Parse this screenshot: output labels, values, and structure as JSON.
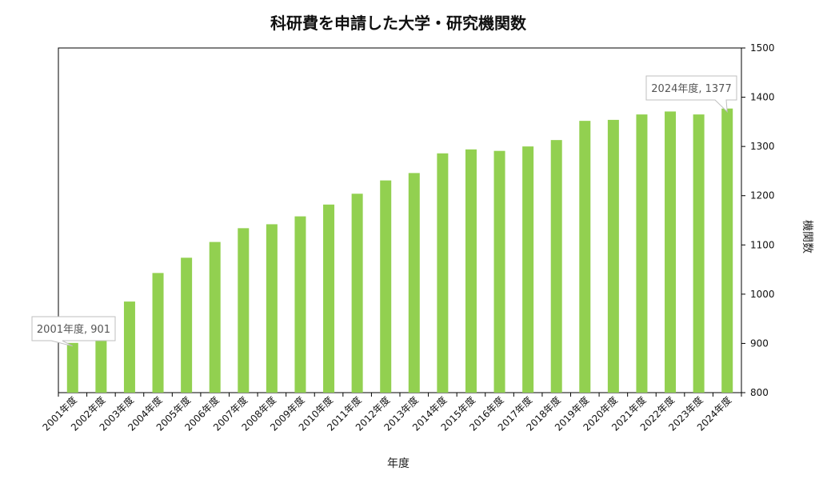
{
  "chart_data": {
    "type": "bar",
    "title": "科研費を申請した大学・研究機関数",
    "xlabel": "年度",
    "ylabel": "機関数",
    "ylim": [
      800,
      1500
    ],
    "yticks": [
      800,
      900,
      1000,
      1100,
      1200,
      1300,
      1400,
      1500
    ],
    "y_axis_side": "right",
    "grid": false,
    "legend": "none",
    "bar_color": "#92d050",
    "categories": [
      "2001年度",
      "2002年度",
      "2003年度",
      "2004年度",
      "2005年度",
      "2006年度",
      "2007年度",
      "2008年度",
      "2009年度",
      "2010年度",
      "2011年度",
      "2012年度",
      "2013年度",
      "2014年度",
      "2015年度",
      "2016年度",
      "2017年度",
      "2018年度",
      "2019年度",
      "2020年度",
      "2021年度",
      "2022年度",
      "2023年度",
      "2024年度"
    ],
    "values": [
      901,
      912,
      985,
      1043,
      1074,
      1106,
      1134,
      1142,
      1158,
      1182,
      1204,
      1231,
      1246,
      1286,
      1294,
      1291,
      1300,
      1313,
      1352,
      1354,
      1365,
      1371,
      1365,
      1377
    ],
    "annotations": [
      {
        "index": 0,
        "text": "2001年度, 901"
      },
      {
        "index": 23,
        "text": "2024年度, 1377"
      }
    ]
  }
}
